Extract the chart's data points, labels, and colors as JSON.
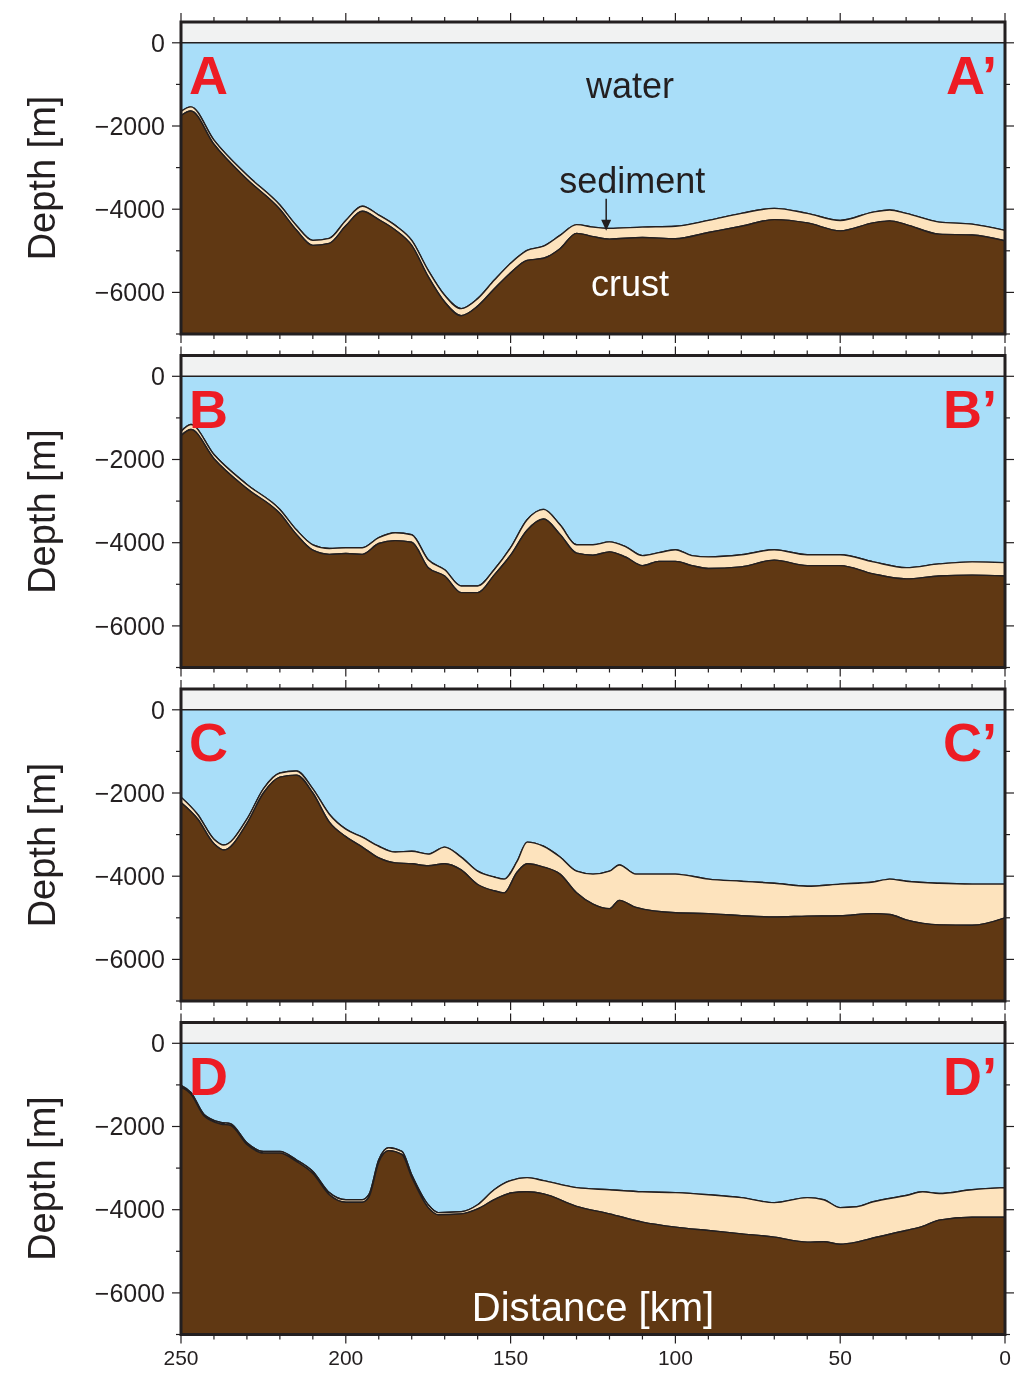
{
  "chart_data": [
    {
      "type": "area",
      "stacked": true,
      "ylabel": "Depth [m]",
      "xlim": [
        250,
        0
      ],
      "ylim": [
        -7000,
        500
      ],
      "tick_labels": "y",
      "xticks": [
        250,
        {
          "value": 240,
          "label": null
        },
        {
          "value": 230,
          "label": null
        },
        {
          "value": 220,
          "label": null
        },
        {
          "value": 210,
          "label": null
        },
        200,
        {
          "value": 190,
          "label": null
        },
        {
          "value": 180,
          "label": null
        },
        {
          "value": 170,
          "label": null
        },
        {
          "value": 160,
          "label": null
        },
        150,
        {
          "value": 140,
          "label": null
        },
        {
          "value": 130,
          "label": null
        },
        {
          "value": 120,
          "label": null
        },
        {
          "value": 110,
          "label": null
        },
        100,
        {
          "value": 90,
          "label": null
        },
        {
          "value": 80,
          "label": null
        },
        {
          "value": 70,
          "label": null
        },
        {
          "value": 60,
          "label": null
        },
        50,
        {
          "value": 40,
          "label": null
        },
        {
          "value": 30,
          "label": null
        },
        {
          "value": 20,
          "label": null
        },
        {
          "value": 10,
          "label": null
        },
        0
      ],
      "yticks": [
        0,
        {
          "value": -1000,
          "label": null
        },
        -2000,
        {
          "value": -3000,
          "label": null
        },
        -4000,
        {
          "value": -5000,
          "label": null
        },
        -6000,
        {
          "value": -7000,
          "label": null
        }
      ],
      "x": [
        250,
        247,
        240,
        230,
        220,
        215,
        210,
        205,
        200,
        195,
        190,
        185,
        180,
        175,
        170,
        165,
        160,
        155,
        150,
        145,
        140,
        135,
        130,
        125,
        120,
        110,
        100,
        90,
        80,
        70,
        60,
        50,
        40,
        35,
        30,
        20,
        10,
        0
      ],
      "series": [
        {
          "color": "#a9def9",
          "values": [
            -1650,
            -1540,
            -2340,
            -3180,
            -3900,
            -4390,
            -4750,
            -4700,
            -4270,
            -3930,
            -4140,
            -4390,
            -4750,
            -5470,
            -6070,
            -6390,
            -6150,
            -5710,
            -5300,
            -4990,
            -4890,
            -4630,
            -4370,
            -4430,
            -4460,
            -4430,
            -4410,
            -4270,
            -4100,
            -3980,
            -4100,
            -4270,
            -4070,
            -4020,
            -4100,
            -4310,
            -4360,
            -4510
          ]
        },
        {
          "color": "#fde3bd",
          "values": [
            -100,
            -100,
            -100,
            -100,
            -100,
            -110,
            -120,
            -120,
            -130,
            -120,
            -110,
            -110,
            -120,
            -150,
            -160,
            -170,
            -180,
            -210,
            -230,
            -240,
            -290,
            -320,
            -210,
            -230,
            -260,
            -250,
            -300,
            -290,
            -310,
            -270,
            -230,
            -250,
            -260,
            -260,
            -270,
            -290,
            -260,
            -250
          ]
        },
        {
          "color": "#603813",
          "values": [
            -5250,
            -5360,
            -4560,
            -3720,
            -3000,
            -2500,
            -2130,
            -2180,
            -2600,
            -2950,
            -2750,
            -2500,
            -2130,
            -1380,
            -770,
            -440,
            -670,
            -1080,
            -1470,
            -1770,
            -1820,
            -2050,
            -2420,
            -2340,
            -2280,
            -2320,
            -2290,
            -2440,
            -2590,
            -2750,
            -2670,
            -2480,
            -2670,
            -2720,
            -2630,
            -2400,
            -2380,
            -2240
          ]
        }
      ],
      "annotations": [
        "A",
        "A’",
        "water",
        "crust",
        {
          "text": "sediment",
          "x": 121,
          "y": -4520
        }
      ]
    },
    {
      "type": "area",
      "stacked": true,
      "ylabel": "Depth [m]",
      "xlim": [
        250,
        0
      ],
      "ylim": [
        -7000,
        500
      ],
      "tick_labels": "y",
      "xticks": [
        250,
        {
          "value": 240,
          "label": null
        },
        {
          "value": 230,
          "label": null
        },
        {
          "value": 220,
          "label": null
        },
        {
          "value": 210,
          "label": null
        },
        200,
        {
          "value": 190,
          "label": null
        },
        {
          "value": 180,
          "label": null
        },
        {
          "value": 170,
          "label": null
        },
        {
          "value": 160,
          "label": null
        },
        150,
        {
          "value": 140,
          "label": null
        },
        {
          "value": 130,
          "label": null
        },
        {
          "value": 120,
          "label": null
        },
        {
          "value": 110,
          "label": null
        },
        100,
        {
          "value": 90,
          "label": null
        },
        {
          "value": 80,
          "label": null
        },
        {
          "value": 70,
          "label": null
        },
        {
          "value": 60,
          "label": null
        },
        50,
        {
          "value": 40,
          "label": null
        },
        {
          "value": 30,
          "label": null
        },
        {
          "value": 20,
          "label": null
        },
        {
          "value": 10,
          "label": null
        },
        0
      ],
      "yticks": [
        0,
        {
          "value": -1000,
          "label": null
        },
        -2000,
        {
          "value": -3000,
          "label": null
        },
        -4000,
        {
          "value": -5000,
          "label": null
        },
        -6000,
        {
          "value": -7000,
          "label": null
        }
      ],
      "x": [
        250,
        247,
        240,
        230,
        220,
        215,
        210,
        205,
        200,
        195,
        190,
        185,
        180,
        175,
        170,
        165,
        160,
        155,
        150,
        145,
        140,
        135,
        130,
        125,
        120,
        115,
        110,
        105,
        100,
        95,
        90,
        80,
        70,
        60,
        50,
        40,
        30,
        20,
        10,
        0
      ],
      "series": [
        {
          "color": "#a9def9",
          "values": [
            -1330,
            -1160,
            -1880,
            -2600,
            -3200,
            -3690,
            -4050,
            -4140,
            -4120,
            -4120,
            -3880,
            -3760,
            -3810,
            -4410,
            -4650,
            -5040,
            -5040,
            -4650,
            -4120,
            -3450,
            -3200,
            -3570,
            -4050,
            -4050,
            -3980,
            -4100,
            -4310,
            -4240,
            -4170,
            -4310,
            -4340,
            -4290,
            -4170,
            -4290,
            -4290,
            -4460,
            -4600,
            -4510,
            -4460,
            -4480
          ]
        },
        {
          "color": "#fde3bd",
          "values": [
            -100,
            -120,
            -100,
            -100,
            -100,
            -110,
            -130,
            -140,
            -140,
            -160,
            -140,
            -190,
            -180,
            -190,
            -150,
            -160,
            -160,
            -130,
            -180,
            -250,
            -230,
            -230,
            -200,
            -250,
            -240,
            -250,
            -240,
            -210,
            -280,
            -240,
            -280,
            -290,
            -250,
            -260,
            -260,
            -290,
            -270,
            -290,
            -320,
            -320
          ]
        },
        {
          "color": "#603813",
          "values": [
            -5570,
            -5720,
            -5020,
            -4300,
            -3700,
            -3200,
            -2820,
            -2720,
            -2740,
            -2720,
            -2980,
            -3050,
            -3010,
            -2400,
            -2200,
            -1800,
            -1800,
            -2220,
            -2700,
            -3300,
            -3570,
            -3200,
            -2750,
            -2700,
            -2780,
            -2650,
            -2450,
            -2550,
            -2550,
            -2450,
            -2380,
            -2420,
            -2580,
            -2450,
            -2450,
            -2250,
            -2130,
            -2200,
            -2220,
            -2200
          ]
        }
      ],
      "annotations": [
        "B",
        "B’"
      ]
    },
    {
      "type": "area",
      "stacked": true,
      "ylabel": "Depth [m]",
      "xlim": [
        250,
        0
      ],
      "ylim": [
        -7000,
        500
      ],
      "tick_labels": "y",
      "xticks": [
        250,
        {
          "value": 240,
          "label": null
        },
        {
          "value": 230,
          "label": null
        },
        {
          "value": 220,
          "label": null
        },
        {
          "value": 210,
          "label": null
        },
        200,
        {
          "value": 190,
          "label": null
        },
        {
          "value": 180,
          "label": null
        },
        {
          "value": 170,
          "label": null
        },
        {
          "value": 160,
          "label": null
        },
        150,
        {
          "value": 140,
          "label": null
        },
        {
          "value": 130,
          "label": null
        },
        {
          "value": 120,
          "label": null
        },
        {
          "value": 110,
          "label": null
        },
        100,
        {
          "value": 90,
          "label": null
        },
        {
          "value": 80,
          "label": null
        },
        {
          "value": 70,
          "label": null
        },
        {
          "value": 60,
          "label": null
        },
        50,
        {
          "value": 40,
          "label": null
        },
        {
          "value": 30,
          "label": null
        },
        {
          "value": 20,
          "label": null
        },
        {
          "value": 10,
          "label": null
        },
        0
      ],
      "yticks": [
        0,
        {
          "value": -1000,
          "label": null
        },
        -2000,
        {
          "value": -3000,
          "label": null
        },
        -4000,
        {
          "value": -5000,
          "label": null
        },
        -6000,
        {
          "value": -7000,
          "label": null
        }
      ],
      "x": [
        250,
        245,
        240,
        237,
        230,
        225,
        220,
        215,
        210,
        205,
        200,
        195,
        190,
        185,
        180,
        175,
        170,
        165,
        160,
        155,
        152,
        148,
        145,
        140,
        135,
        130,
        125,
        120,
        117,
        112,
        100,
        90,
        80,
        70,
        60,
        50,
        40,
        35,
        30,
        20,
        10,
        0
      ],
      "series": [
        {
          "color": "#a9def9",
          "values": [
            -2100,
            -2510,
            -3110,
            -3250,
            -2630,
            -1900,
            -1520,
            -1470,
            -1900,
            -2510,
            -2870,
            -3060,
            -3280,
            -3420,
            -3400,
            -3470,
            -3300,
            -3540,
            -3880,
            -4020,
            -4070,
            -3640,
            -3180,
            -3280,
            -3540,
            -3880,
            -3950,
            -3880,
            -3730,
            -3950,
            -3950,
            -4070,
            -4120,
            -4170,
            -4240,
            -4190,
            -4140,
            -4070,
            -4120,
            -4170,
            -4190,
            -4190
          ]
        },
        {
          "color": "#fde3bd",
          "values": [
            -130,
            -110,
            -110,
            -120,
            -100,
            -100,
            -100,
            -100,
            -100,
            -190,
            -180,
            -240,
            -280,
            -260,
            -300,
            -280,
            -400,
            -310,
            -320,
            -330,
            -330,
            -260,
            -520,
            -500,
            -410,
            -520,
            -720,
            -900,
            -850,
            -800,
            -930,
            -830,
            -830,
            -810,
            -720,
            -760,
            -760,
            -850,
            -930,
            -1000,
            -990,
            -810
          ]
        },
        {
          "color": "#603813",
          "values": [
            -4770,
            -4380,
            -3780,
            -3630,
            -4270,
            -5000,
            -5380,
            -5430,
            -5000,
            -4300,
            -3950,
            -3700,
            -3440,
            -3320,
            -3300,
            -3250,
            -3300,
            -3150,
            -2800,
            -2650,
            -2600,
            -3100,
            -3300,
            -3220,
            -3050,
            -2600,
            -2330,
            -2220,
            -2420,
            -2250,
            -2120,
            -2100,
            -2050,
            -2020,
            -2040,
            -2050,
            -2100,
            -2080,
            -1950,
            -1830,
            -1820,
            -2000
          ]
        }
      ],
      "annotations": [
        "C",
        "C’"
      ]
    },
    {
      "type": "area",
      "stacked": true,
      "ylabel": "Depth [m]",
      "xlabel": "Distance [km]",
      "xlim": [
        250,
        0
      ],
      "ylim": [
        -7000,
        500
      ],
      "xticks": [
        250,
        {
          "value": 240,
          "label": null
        },
        {
          "value": 230,
          "label": null
        },
        {
          "value": 220,
          "label": null
        },
        {
          "value": 210,
          "label": null
        },
        200,
        {
          "value": 190,
          "label": null
        },
        {
          "value": 180,
          "label": null
        },
        {
          "value": 170,
          "label": null
        },
        {
          "value": 160,
          "label": null
        },
        150,
        {
          "value": 140,
          "label": null
        },
        {
          "value": 130,
          "label": null
        },
        {
          "value": 120,
          "label": null
        },
        {
          "value": 110,
          "label": null
        },
        100,
        {
          "value": 90,
          "label": null
        },
        {
          "value": 80,
          "label": null
        },
        {
          "value": 70,
          "label": null
        },
        {
          "value": 60,
          "label": null
        },
        50,
        {
          "value": 40,
          "label": null
        },
        {
          "value": 30,
          "label": null
        },
        {
          "value": 20,
          "label": null
        },
        {
          "value": 10,
          "label": null
        },
        0
      ],
      "yticks": [
        0,
        {
          "value": -1000,
          "label": null
        },
        -2000,
        {
          "value": -3000,
          "label": null
        },
        -4000,
        {
          "value": -5000,
          "label": null
        },
        -6000,
        {
          "value": -7000,
          "label": null
        }
      ],
      "x": [
        250,
        247,
        243,
        238,
        235,
        230,
        225,
        220,
        215,
        210,
        205,
        200,
        195,
        193,
        190,
        187,
        183,
        180,
        175,
        172,
        165,
        160,
        155,
        150,
        145,
        140,
        130,
        120,
        110,
        100,
        90,
        80,
        70,
        60,
        55,
        50,
        45,
        40,
        30,
        25,
        20,
        10,
        0
      ],
      "series": [
        {
          "color": "#a9def9",
          "values": [
            -1010,
            -1180,
            -1710,
            -1900,
            -1930,
            -2390,
            -2600,
            -2600,
            -2800,
            -3080,
            -3590,
            -3760,
            -3760,
            -3640,
            -2800,
            -2510,
            -2600,
            -3160,
            -3880,
            -4070,
            -4050,
            -3880,
            -3520,
            -3300,
            -3230,
            -3300,
            -3470,
            -3520,
            -3570,
            -3590,
            -3640,
            -3710,
            -3830,
            -3710,
            -3760,
            -3950,
            -3930,
            -3810,
            -3660,
            -3570,
            -3610,
            -3520,
            -3470
          ]
        },
        {
          "color": "#fde3bd",
          "values": [
            -40,
            -40,
            -40,
            -40,
            -40,
            -40,
            -40,
            -40,
            -40,
            -50,
            -50,
            -60,
            -60,
            -60,
            -60,
            -70,
            -70,
            -60,
            -70,
            -50,
            -50,
            -100,
            -240,
            -300,
            -340,
            -320,
            -450,
            -580,
            -730,
            -830,
            -860,
            -870,
            -830,
            -1070,
            -1010,
            -880,
            -850,
            -870,
            -840,
            -830,
            -640,
            -660,
            -710
          ]
        },
        {
          "color": "#603813",
          "values": [
            -5950,
            -5780,
            -5250,
            -5060,
            -5030,
            -4570,
            -4360,
            -4360,
            -4160,
            -3870,
            -3360,
            -3180,
            -3180,
            -3300,
            -4140,
            -4420,
            -4330,
            -3780,
            -3050,
            -2880,
            -2900,
            -3020,
            -3240,
            -3400,
            -3430,
            -3380,
            -3080,
            -2900,
            -2700,
            -2580,
            -2500,
            -2420,
            -2340,
            -2220,
            -2230,
            -2170,
            -2220,
            -2320,
            -2500,
            -2600,
            -2750,
            -2820,
            -2820
          ]
        }
      ],
      "annotations": [
        "D",
        "D’"
      ]
    }
  ]
}
